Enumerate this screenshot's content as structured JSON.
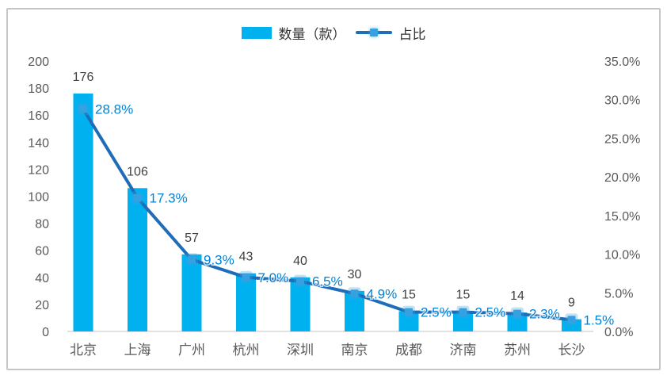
{
  "frame": {
    "border_color": "#c6c6c6",
    "background": "#ffffff"
  },
  "legend": {
    "position": "top-center"
  },
  "chart_data": {
    "type": "bar+line",
    "title": "",
    "categories": [
      "北京",
      "上海",
      "广州",
      "杭州",
      "深圳",
      "南京",
      "成都",
      "济南",
      "苏州",
      "长沙"
    ],
    "series": [
      {
        "name": "数量（款）",
        "type": "bar",
        "axis": "left",
        "values": [
          176,
          106,
          57,
          43,
          40,
          30,
          15,
          15,
          14,
          9
        ],
        "color": "#00b1f0",
        "value_label_color": "#404040"
      },
      {
        "name": "占比",
        "type": "line",
        "axis": "right",
        "values": [
          28.8,
          17.3,
          9.3,
          7.0,
          6.5,
          4.9,
          2.5,
          2.5,
          2.3,
          1.5
        ],
        "labels": [
          "28.8%",
          "17.3%",
          "9.3%",
          "7.0%",
          "6.5%",
          "4.9%",
          "2.5%",
          "2.5%",
          "2.3%",
          "1.5%"
        ],
        "color": "#1f6cb8",
        "marker_color": "#35a1e0",
        "label_color": "#0082d6"
      }
    ],
    "left_axis": {
      "min": 0,
      "max": 200,
      "step": 20,
      "ticks": [
        "0",
        "20",
        "40",
        "60",
        "80",
        "100",
        "120",
        "140",
        "160",
        "180",
        "200"
      ]
    },
    "right_axis": {
      "min": 0,
      "max": 35,
      "step": 5,
      "ticks": [
        "0.0%",
        "5.0%",
        "10.0%",
        "15.0%",
        "20.0%",
        "25.0%",
        "30.0%",
        "35.0%"
      ]
    },
    "grid": false,
    "axis_line_color": "#d9d9d9",
    "tick_label_color": "#595959",
    "legend_position": "top-center"
  }
}
